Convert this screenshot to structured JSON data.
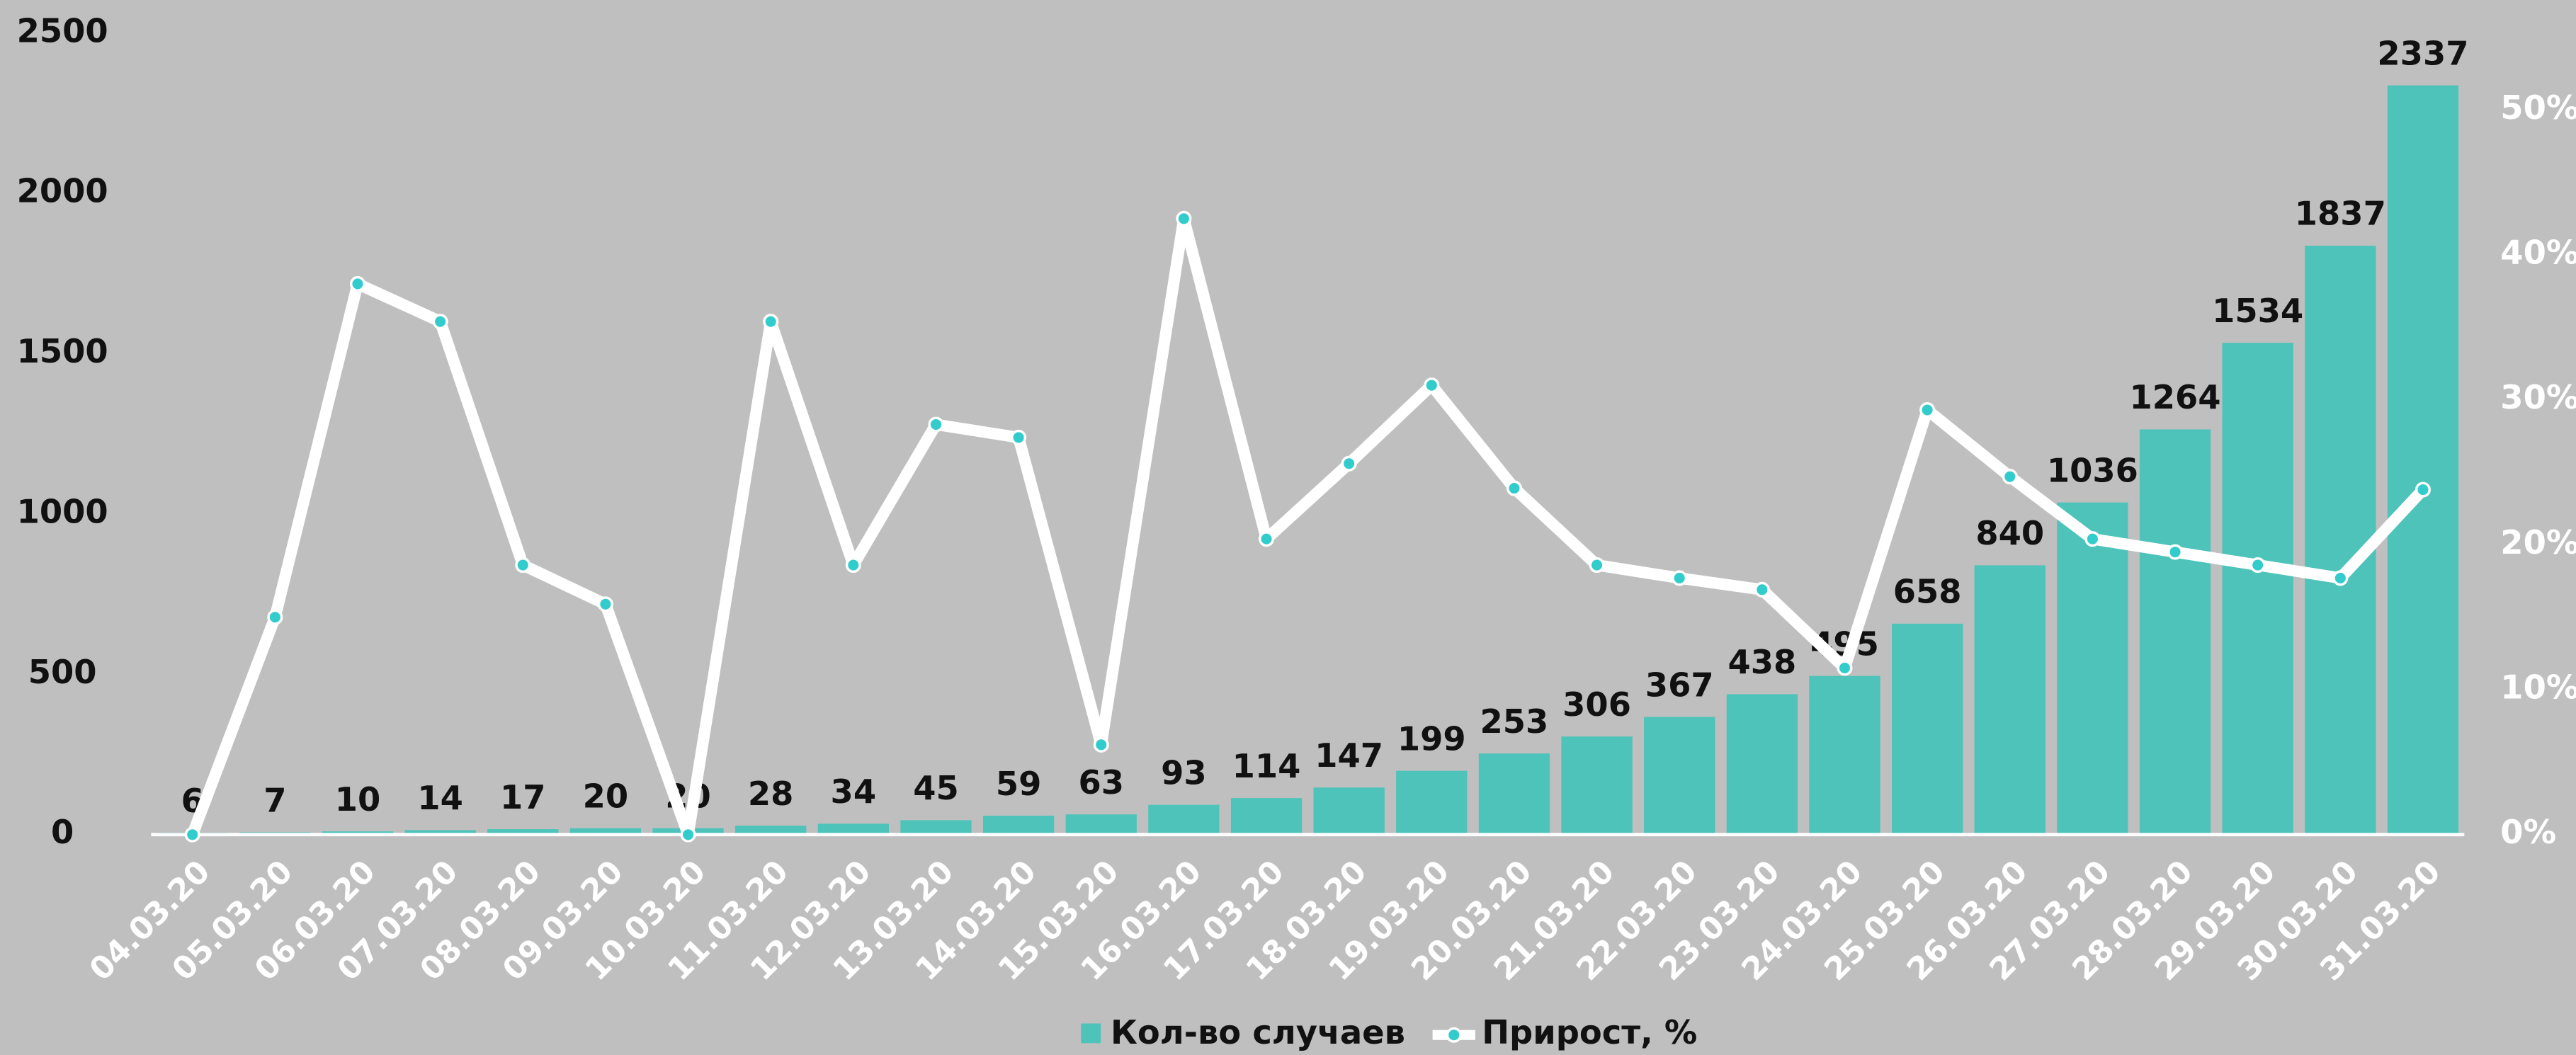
{
  "chart_data": {
    "type": "bar_line",
    "categories": [
      "04.03.20",
      "05.03.20",
      "06.03.20",
      "07.03.20",
      "08.03.20",
      "09.03.20",
      "10.03.20",
      "11.03.20",
      "12.03.20",
      "13.03.20",
      "14.03.20",
      "15.03.20",
      "16.03.20",
      "17.03.20",
      "18.03.20",
      "19.03.20",
      "20.03.20",
      "21.03.20",
      "22.03.20",
      "23.03.20",
      "24.03.20",
      "25.03.20",
      "26.03.20",
      "27.03.20",
      "28.03.20",
      "29.03.20",
      "30.03.20",
      "31.03.20"
    ],
    "series": [
      {
        "name": "Кол-во случаев",
        "color": "#4ec3b9",
        "type": "bar",
        "values": [
          6,
          7,
          10,
          14,
          17,
          20,
          20,
          28,
          34,
          45,
          59,
          63,
          93,
          114,
          147,
          199,
          253,
          306,
          367,
          438,
          495,
          658,
          840,
          1036,
          1264,
          1534,
          1837,
          2337
        ]
      },
      {
        "name": "Прирост, %",
        "color": "#ffffff",
        "marker_color": "#33cccc",
        "type": "line",
        "axis": "y2",
        "values": [
          0,
          15.0,
          38.0,
          35.4,
          18.6,
          15.9,
          0,
          35.4,
          18.6,
          28.3,
          27.4,
          6.2,
          42.5,
          20.4,
          25.6,
          31.0,
          23.9,
          18.6,
          17.7,
          16.9,
          11.5,
          29.3,
          24.7,
          20.4,
          19.5,
          18.6,
          17.7,
          23.8
        ]
      }
    ],
    "ylim": [
      0,
      2500
    ],
    "yticks": [
      0,
      500,
      1000,
      1500,
      2000,
      2500
    ],
    "y2lim": [
      0,
      55.3
    ],
    "y2ticks": [
      {
        "value": 0,
        "label": "0%"
      },
      {
        "value": 10,
        "label": "10%"
      },
      {
        "value": 20,
        "label": "20%"
      },
      {
        "value": 30,
        "label": "30%"
      },
      {
        "value": 40,
        "label": "40%"
      },
      {
        "value": 50,
        "label": "50%"
      }
    ],
    "legend": "bottom"
  }
}
